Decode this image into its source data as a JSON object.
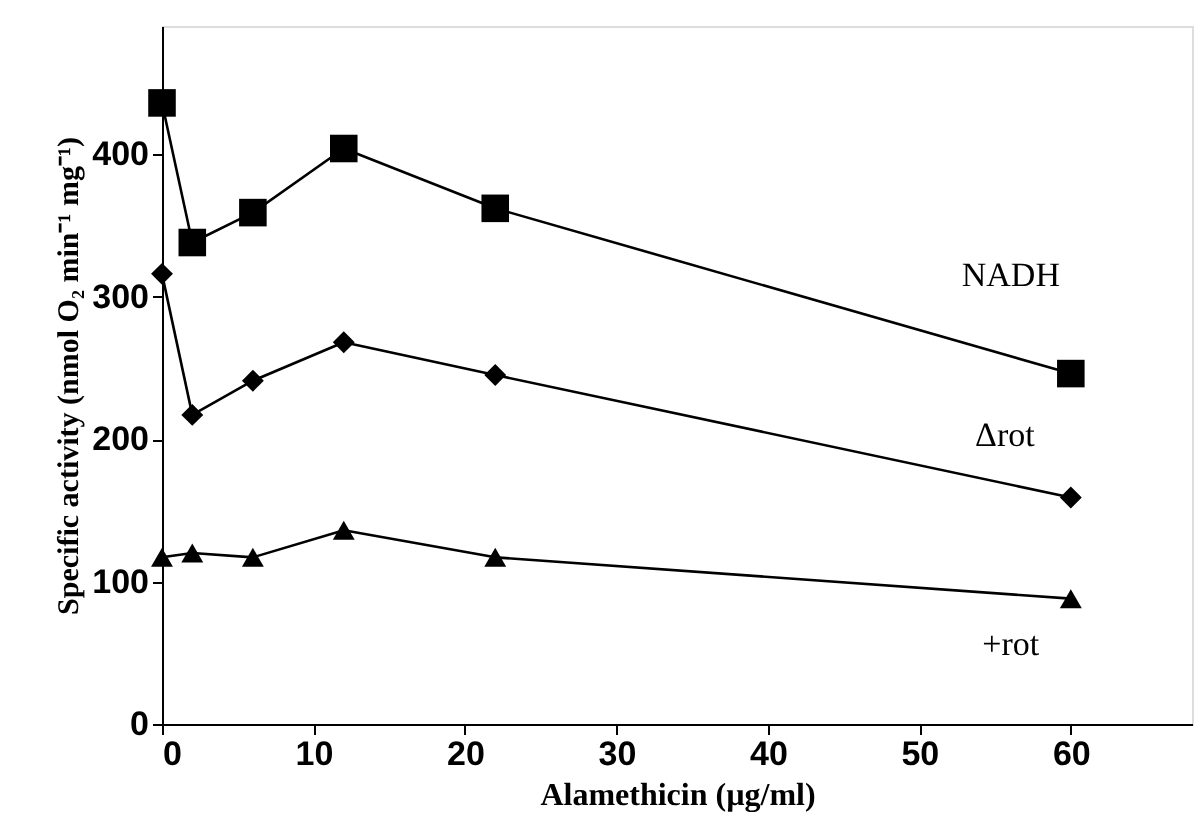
{
  "chart_data": {
    "type": "line",
    "xlabel": "Alamethicin (µg/ml)",
    "ylabel": "Specific activity (nmol O₂ min⁻¹ mg⁻¹)",
    "x": [
      0,
      2,
      6,
      12,
      22,
      60
    ],
    "series": [
      {
        "name": "NADH",
        "color": "#000000",
        "marker": "square",
        "values": [
          436,
          338,
          359,
          404,
          362,
          246
        ]
      },
      {
        "name": "Δrot",
        "color": "#000000",
        "marker": "diamond",
        "values": [
          316,
          217,
          241,
          268,
          245,
          159
        ]
      },
      {
        "name": "+rot",
        "color": "#000000",
        "marker": "triangle",
        "values": [
          117,
          120,
          117,
          136,
          117,
          88
        ]
      }
    ],
    "xlim": [
      0,
      68
    ],
    "ylim": [
      0,
      490
    ],
    "xticks": [
      0,
      10,
      20,
      30,
      40,
      50,
      60
    ],
    "yticks": [
      0,
      100,
      200,
      300,
      400
    ],
    "grid": false,
    "line_style": "solid"
  }
}
